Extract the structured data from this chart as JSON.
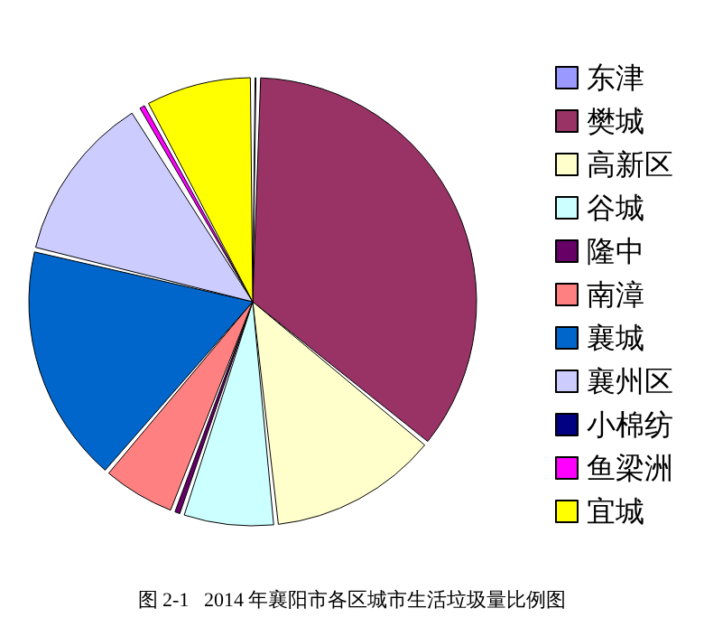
{
  "chart_data": {
    "type": "pie",
    "title": "图 2-1   2014 年襄阳市各区城市生活垃圾量比例图",
    "categories": [
      "东津",
      "樊城",
      "高新区",
      "谷城",
      "隆中",
      "南漳",
      "襄城",
      "襄州区",
      "小棉纺",
      "鱼梁洲",
      "宜城"
    ],
    "values": [
      0.4,
      35.6,
      12.5,
      6.8,
      0.7,
      5.5,
      17.5,
      12.4,
      0,
      0.7,
      7.9
    ],
    "colors": [
      "#9999ff",
      "#993366",
      "#ffffcc",
      "#ccffff",
      "#660066",
      "#ff8080",
      "#0066cc",
      "#ccccff",
      "#000080",
      "#ff00ff",
      "#ffff00"
    ],
    "legend": "right"
  }
}
